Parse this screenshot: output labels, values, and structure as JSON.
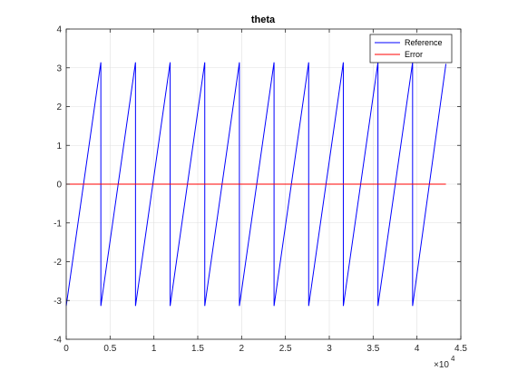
{
  "chart_data": {
    "type": "line",
    "title": "theta",
    "xlabel": "",
    "ylabel": "",
    "xlim": [
      0,
      45000
    ],
    "ylim": [
      -4,
      4
    ],
    "x_ticks": [
      0,
      5000,
      10000,
      15000,
      20000,
      25000,
      30000,
      35000,
      40000,
      45000
    ],
    "x_tick_labels": [
      "0",
      "0.5",
      "1",
      "1.5",
      "2",
      "2.5",
      "3",
      "3.5",
      "4",
      "4.5"
    ],
    "x_exponent_label": "×10",
    "x_exponent_power": "4",
    "y_ticks": [
      -4,
      -3,
      -2,
      -1,
      0,
      1,
      2,
      3,
      4
    ],
    "y_tick_labels": [
      "-4",
      "-3",
      "-2",
      "-1",
      "0",
      "1",
      "2",
      "3",
      "4"
    ],
    "grid": true,
    "legend_position": "top-right",
    "series": [
      {
        "name": "Reference",
        "color": "#0000ff",
        "x": [
          0,
          3950,
          3950,
          7900,
          7900,
          11850,
          11850,
          15800,
          15800,
          19750,
          19750,
          23700,
          23700,
          27650,
          27650,
          31600,
          31600,
          35550,
          35550,
          39500,
          39500,
          43300
        ],
        "y": [
          -3.1416,
          3.1416,
          -3.1416,
          3.1416,
          -3.1416,
          3.1416,
          -3.1416,
          3.1416,
          -3.1416,
          3.1416,
          -3.1416,
          3.1416,
          -3.1416,
          3.1416,
          -3.1416,
          3.1416,
          -3.1416,
          3.1416,
          -3.1416,
          3.1416,
          -3.1416,
          3.1
        ]
      },
      {
        "name": "Error",
        "color": "#ff0000",
        "x": [
          0,
          43300
        ],
        "y": [
          0,
          0
        ]
      }
    ]
  }
}
